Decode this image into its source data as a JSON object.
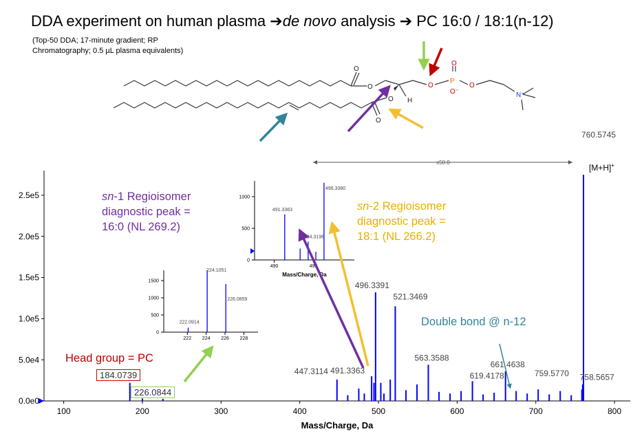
{
  "header": {
    "title_part1": "DDA experiment on human plasma ",
    "title_arrow1": "➔",
    "title_denovo": "de novo",
    "title_part2": " analysis ",
    "title_arrow2": "➔",
    "title_part3": " PC 16:0 / 18:1(n-12)",
    "conditions_line1": "(Top-50 DDA; 17-minute gradient; RP",
    "conditions_line2": "Chromatography; 0.5 µL plasma equivalents)"
  },
  "structure_labels": [
    "O",
    "O",
    "O",
    "O",
    "P",
    "O",
    "O⁻",
    "O",
    "O",
    "N⁺",
    "H"
  ],
  "annotations": {
    "sn1_italic": "sn",
    "sn1_line1": "-1 Regioisomer",
    "sn1_line2": "diagnostic peak =",
    "sn1_line3": "16:0 (NL 269.2)",
    "sn2_italic": "sn",
    "sn2_line1": "-2 Regioisomer",
    "sn2_line2": "diagnostic peak =",
    "sn2_line3": "18:1 (NL 266.2)",
    "head_group": "Head group = PC",
    "double_bond": "Double bond @ n-12",
    "head_mz": "184.0739",
    "head_mz2": "226.0844",
    "mh_label": "[M+H]",
    "mh_sup": "+",
    "x50": "x50.0"
  },
  "colors": {
    "spectrum": "#0000ff",
    "purple": "#7030a0",
    "gold": "#f0c030",
    "red": "#c00000",
    "green": "#92d050",
    "teal": "#31849b"
  },
  "chart_data": [
    {
      "type": "bar",
      "xlabel": "Mass/Charge, Da",
      "ylabel": "",
      "xlim": [
        75,
        820
      ],
      "ylim": [
        0,
        280000
      ],
      "x_ticks": [
        100,
        200,
        300,
        400,
        500,
        600,
        700,
        800
      ],
      "y_ticks": [
        {
          "v": 0,
          "label": "0.0e0"
        },
        {
          "v": 50000,
          "label": "5.0e4"
        },
        {
          "v": 100000,
          "label": "1.0e5"
        },
        {
          "v": 150000,
          "label": "1.5e5"
        },
        {
          "v": 200000,
          "label": "2.0e5"
        },
        {
          "v": 250000,
          "label": "2.5e5"
        }
      ],
      "peaks": [
        {
          "mz": 184.0739,
          "i": 22000
        },
        {
          "mz": 200.0,
          "i": 3000
        },
        {
          "mz": 226.0844,
          "i": 2500
        },
        {
          "mz": 447.3114,
          "i": 26000
        },
        {
          "mz": 461.0,
          "i": 7000
        },
        {
          "mz": 475.0,
          "i": 15000
        },
        {
          "mz": 482.0,
          "i": 9000
        },
        {
          "mz": 491.3363,
          "i": 30000
        },
        {
          "mz": 494.3196,
          "i": 22000
        },
        {
          "mz": 496.3391,
          "i": 132000
        },
        {
          "mz": 503.0,
          "i": 22000
        },
        {
          "mz": 507.0,
          "i": 9000
        },
        {
          "mz": 515.0,
          "i": 26000
        },
        {
          "mz": 521.3469,
          "i": 115000
        },
        {
          "mz": 535.0,
          "i": 13000
        },
        {
          "mz": 549.0,
          "i": 20000
        },
        {
          "mz": 563.3588,
          "i": 44000
        },
        {
          "mz": 577.0,
          "i": 11000
        },
        {
          "mz": 591.0,
          "i": 9000
        },
        {
          "mz": 605.0,
          "i": 12000
        },
        {
          "mz": 619.4178,
          "i": 24000
        },
        {
          "mz": 633.0,
          "i": 8000
        },
        {
          "mz": 647.0,
          "i": 10000
        },
        {
          "mz": 661.4638,
          "i": 36000
        },
        {
          "mz": 675.0,
          "i": 12000
        },
        {
          "mz": 689.0,
          "i": 9000
        },
        {
          "mz": 703.0,
          "i": 14000
        },
        {
          "mz": 717.0,
          "i": 8000
        },
        {
          "mz": 731.0,
          "i": 12000
        },
        {
          "mz": 745.0,
          "i": 7000
        },
        {
          "mz": 758.5657,
          "i": 14000
        },
        {
          "mz": 759.577,
          "i": 20000
        },
        {
          "mz": 760.5745,
          "i": 275000
        }
      ],
      "peak_labels": [
        {
          "mz": 184.0739,
          "label": "184.0739"
        },
        {
          "mz": 226.0844,
          "label": "226.0844"
        },
        {
          "mz": 447.3114,
          "label": "447.3114"
        },
        {
          "mz": 491.3363,
          "label": "491.3363"
        },
        {
          "mz": 496.3391,
          "label": "496.3391"
        },
        {
          "mz": 521.3469,
          "label": "521.3469"
        },
        {
          "mz": 563.3588,
          "label": "563.3588"
        },
        {
          "mz": 619.4178,
          "label": "619.4178"
        },
        {
          "mz": 661.4638,
          "label": "661.4638"
        },
        {
          "mz": 759.577,
          "label": "759.5770"
        },
        {
          "mz": 758.5657,
          "label": "758.5657"
        },
        {
          "mz": 760.5745,
          "label": "760.5745"
        }
      ]
    },
    {
      "type": "bar",
      "xlabel": "",
      "ylim": [
        0,
        1800
      ],
      "xlim": [
        219.5,
        229.5
      ],
      "x_ticks": [
        222,
        224,
        226,
        228
      ],
      "y_ticks": [
        0,
        500,
        1000,
        1500
      ],
      "peaks": [
        {
          "mz": 222.0914,
          "i": 130
        },
        {
          "mz": 224.1051,
          "i": 1800
        },
        {
          "mz": 226.0859,
          "i": 1400
        }
      ],
      "peak_labels": [
        {
          "mz": 222.0914,
          "label": "222.0914"
        },
        {
          "mz": 224.1051,
          "label": "224.1051"
        },
        {
          "mz": 226.0859,
          "label": "226.0859"
        }
      ]
    },
    {
      "type": "bar",
      "xlabel": "Mass/Charge, Da",
      "ylim": [
        0,
        1250
      ],
      "xlim": [
        487.5,
        500.2
      ],
      "x_ticks": [
        490,
        495
      ],
      "y_ticks": [
        0,
        500,
        1000
      ],
      "peaks": [
        {
          "mz": 491.3363,
          "i": 720
        },
        {
          "mz": 494.3196,
          "i": 290
        },
        {
          "mz": 496.338,
          "i": 1220
        },
        {
          "mz": 493.3,
          "i": 180
        },
        {
          "mz": 495.3,
          "i": 130
        }
      ],
      "peak_labels": [
        {
          "mz": 491.3363,
          "label": "491.3363"
        },
        {
          "mz": 494.3196,
          "label": "494.3196"
        },
        {
          "mz": 496.338,
          "label": "496.3380"
        }
      ]
    }
  ]
}
